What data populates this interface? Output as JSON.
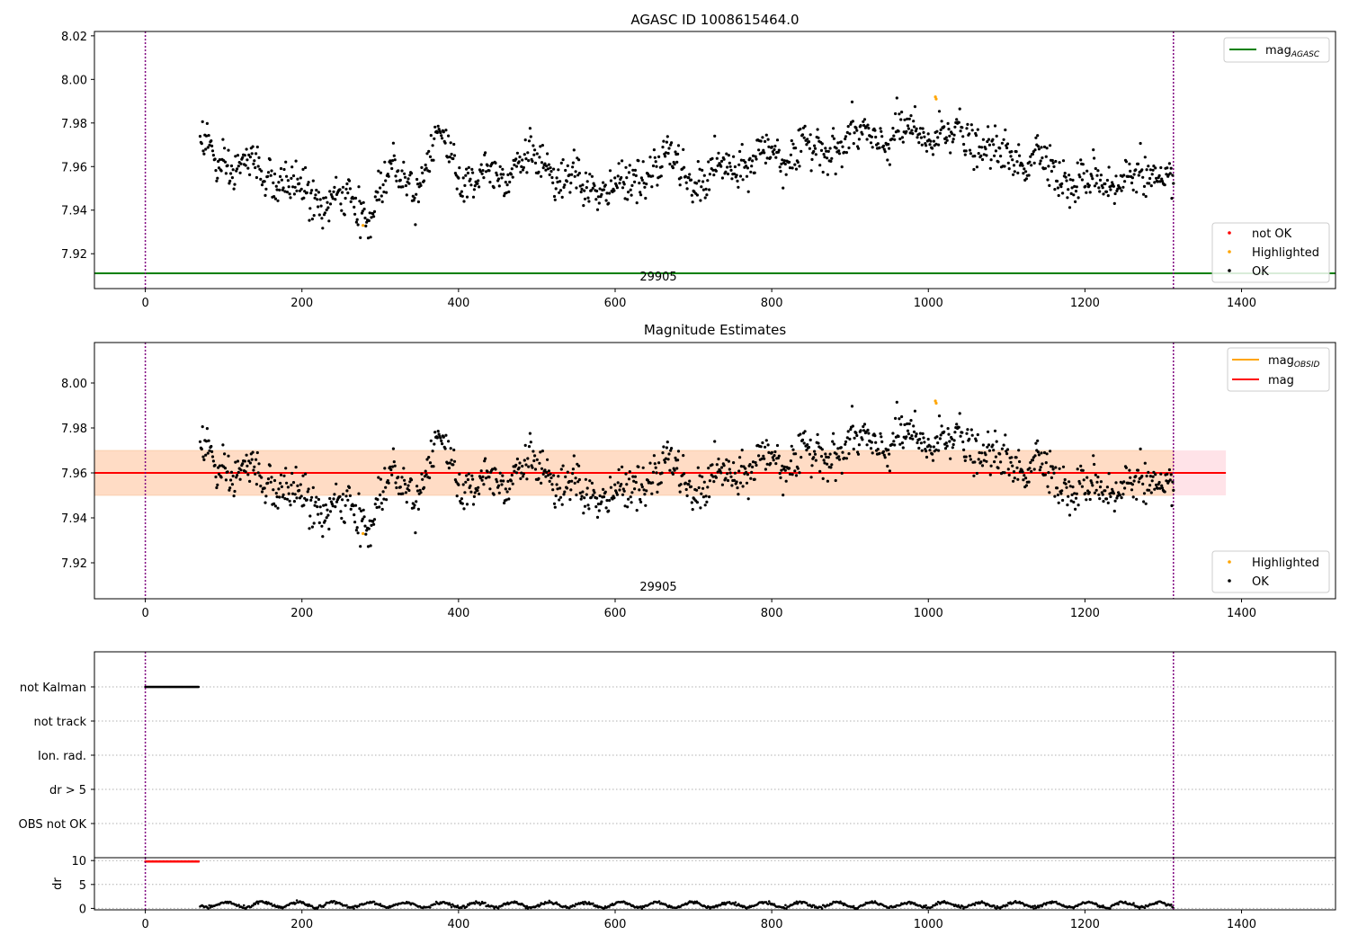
{
  "figure": {
    "panel1_title": "AGASC ID 1008615464.0",
    "panel2_title": "Magnitude Estimates",
    "obsid_label": "29905"
  },
  "colors": {
    "ok": "#000000",
    "highlighted": "#ffa500",
    "not_ok": "#ff0000",
    "mag_agasc": "#008000",
    "mag": "#ff0000",
    "mag_obsid": "#ffa500",
    "obs_boundary": "#800080",
    "band_outer": "#ffc0cb",
    "band_inner": "#ffdab9"
  },
  "legends": {
    "panel1_lines": [
      {
        "text": "mag",
        "sub": "AGASC",
        "color": "#008000"
      }
    ],
    "panel1_points": [
      {
        "text": "not OK",
        "color": "#ff0000"
      },
      {
        "text": "Highlighted",
        "color": "#ffa500"
      },
      {
        "text": "OK",
        "color": "#000000"
      }
    ],
    "panel2_lines": [
      {
        "text": "mag",
        "sub": "OBSID",
        "color": "#ffa500"
      },
      {
        "text": "mag",
        "sub": "",
        "color": "#ff0000"
      }
    ],
    "panel2_points": [
      {
        "text": "Highlighted",
        "color": "#ffa500"
      },
      {
        "text": "OK",
        "color": "#000000"
      }
    ]
  },
  "chart_data": [
    {
      "type": "scatter",
      "title": "AGASC ID 1008615464.0",
      "xlim": [
        -65,
        1520
      ],
      "ylim": [
        7.904,
        8.022
      ],
      "xticks": [
        0,
        200,
        400,
        600,
        800,
        1000,
        1200,
        1400
      ],
      "yticks": [
        7.92,
        7.94,
        7.96,
        7.98,
        8.0,
        8.02
      ],
      "mag_agasc": 7.911,
      "obs_boundaries": [
        0,
        1313
      ],
      "series": [
        {
          "name": "OK",
          "x_range": [
            70,
            1313
          ],
          "n": 1240,
          "trend_x": [
            70,
            90,
            150,
            200,
            230,
            270,
            285,
            300,
            320,
            350,
            370,
            390,
            410,
            450,
            480,
            500,
            520,
            560,
            590,
            620,
            650,
            665,
            700,
            740,
            800,
            850,
            900,
            950,
            1000,
            1050,
            1080,
            1100,
            1140,
            1160,
            1200,
            1250,
            1290,
            1313
          ],
          "trend_y": [
            7.973,
            7.962,
            7.958,
            7.948,
            7.945,
            7.941,
            7.938,
            7.95,
            7.958,
            7.953,
            7.972,
            7.968,
            7.952,
            7.958,
            7.963,
            7.962,
            7.957,
            7.95,
            7.95,
            7.952,
            7.96,
            7.964,
            7.953,
            7.958,
            7.966,
            7.967,
            7.972,
            7.974,
            7.975,
            7.974,
            7.966,
            7.963,
            7.966,
            7.957,
            7.952,
            7.955,
            7.955,
            7.955
          ],
          "scatter_sd": 0.006
        },
        {
          "name": "Highlighted",
          "x": [
            278,
            1009,
            1010
          ],
          "y": [
            7.933,
            7.992,
            7.991
          ]
        },
        {
          "name": "not OK",
          "x": [],
          "y": []
        }
      ]
    },
    {
      "type": "scatter",
      "title": "Magnitude Estimates",
      "xlim": [
        -65,
        1520
      ],
      "ylim": [
        7.904,
        8.018
      ],
      "xticks": [
        0,
        200,
        400,
        600,
        800,
        1000,
        1200,
        1400
      ],
      "yticks": [
        7.92,
        7.94,
        7.96,
        7.98,
        8.0
      ],
      "mag": 7.96,
      "mag_band_outer": [
        7.95,
        7.97
      ],
      "mag_obsid_band": [
        7.95,
        7.97
      ],
      "band_x_range": [
        -65,
        1380
      ],
      "obs_boundaries": [
        0,
        1313
      ],
      "series": [
        {
          "name": "OK",
          "x_range": [
            70,
            1313
          ],
          "n": 1240
        },
        {
          "name": "Highlighted",
          "x": [
            278,
            1009,
            1010
          ],
          "y": [
            7.933,
            7.992,
            7.991
          ]
        }
      ]
    },
    {
      "type": "scatter",
      "title": "",
      "xlim": [
        -65,
        1520
      ],
      "categories": [
        "not Kalman",
        "not track",
        "Ion. rad.",
        "dr > 5",
        "OBS not OK"
      ],
      "flag_ranges": [
        {
          "category": "not Kalman",
          "x_range": [
            0,
            68
          ]
        }
      ],
      "obs_boundaries": [
        0,
        1313
      ]
    },
    {
      "type": "scatter",
      "title": "",
      "ylabel": "dr",
      "xlim": [
        -65,
        1520
      ],
      "ylim": [
        -0.3,
        10.6
      ],
      "yticks": [
        0,
        5,
        10
      ],
      "xticks": [
        0,
        200,
        400,
        600,
        800,
        1000,
        1200,
        1400
      ],
      "xticklabels": [
        "0",
        "200",
        "400",
        "600",
        "800",
        "1000",
        "1200",
        "1400"
      ],
      "not_ok_dr": {
        "x_range": [
          0,
          68
        ],
        "y": 9.8
      },
      "ok_dr": {
        "x_range": [
          70,
          1313
        ],
        "y_range": [
          0,
          1.8
        ]
      },
      "obs_boundaries": [
        0,
        1313
      ]
    }
  ]
}
